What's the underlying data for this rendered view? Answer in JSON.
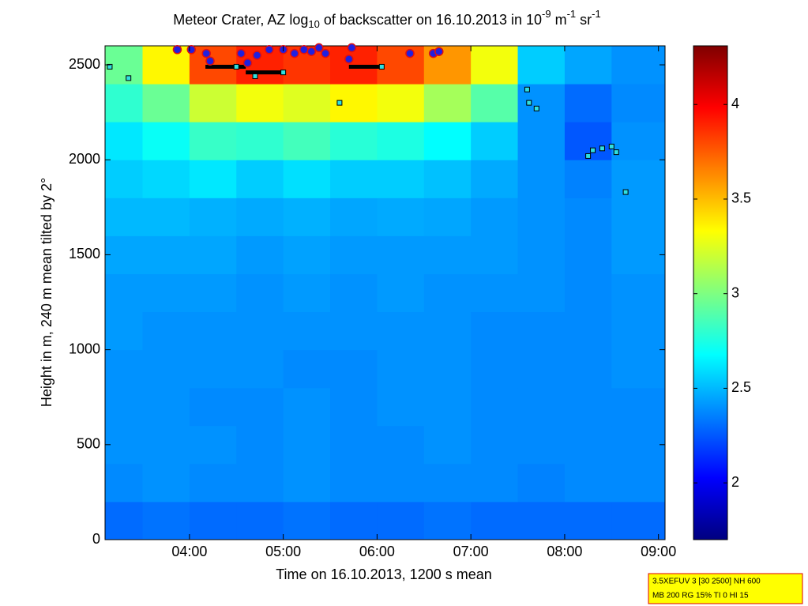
{
  "chart_data": {
    "type": "heatmap",
    "title_parts": [
      {
        "text": "Meteor Crater, AZ log"
      },
      {
        "text": "10",
        "script": "sub"
      },
      {
        "text": " of backscatter on 16.10.2013 in 10"
      },
      {
        "text": "-9",
        "script": "super"
      },
      {
        "text": " m"
      },
      {
        "text": "-1",
        "script": "super"
      },
      {
        "text": " sr"
      },
      {
        "text": "-1",
        "script": "super"
      }
    ],
    "x_label": "Time on 16.10.2013, 1200 s mean",
    "y_label": "Height in m, 240 m mean tilted by 2°",
    "xlim": [
      3.1,
      9.07
    ],
    "xticks": [
      {
        "value": 4,
        "label": "04:00"
      },
      {
        "value": 5,
        "label": "05:00"
      },
      {
        "value": 6,
        "label": "06:00"
      },
      {
        "value": 7,
        "label": "07:00"
      },
      {
        "value": 8,
        "label": "08:00"
      },
      {
        "value": 9,
        "label": "09:00"
      }
    ],
    "ylim": [
      0,
      2600
    ],
    "yticks": [
      0,
      500,
      1000,
      1500,
      2000,
      2500
    ],
    "clim": [
      1.7,
      4.31
    ],
    "cticks": [
      2,
      2.5,
      3,
      3.5,
      4
    ],
    "colormap": "jet",
    "x_edges": [
      3.1,
      3.5,
      4.0,
      4.5,
      5.0,
      5.5,
      6.0,
      6.5,
      7.0,
      7.5,
      8.0,
      8.5,
      9.07
    ],
    "y_edges": [
      0,
      200,
      400,
      600,
      800,
      1000,
      1200,
      1400,
      1600,
      1800,
      2000,
      2200,
      2400,
      2600
    ],
    "z": [
      [
        2.3,
        2.32,
        2.3,
        2.3,
        2.32,
        2.3,
        2.3,
        2.32,
        2.3,
        2.3,
        2.3,
        2.3
      ],
      [
        2.38,
        2.4,
        2.38,
        2.38,
        2.4,
        2.38,
        2.38,
        2.38,
        2.38,
        2.36,
        2.38,
        2.38
      ],
      [
        2.4,
        2.4,
        2.4,
        2.38,
        2.4,
        2.38,
        2.38,
        2.4,
        2.38,
        2.38,
        2.38,
        2.38
      ],
      [
        2.4,
        2.4,
        2.38,
        2.38,
        2.4,
        2.38,
        2.4,
        2.4,
        2.38,
        2.38,
        2.38,
        2.38
      ],
      [
        2.4,
        2.4,
        2.4,
        2.4,
        2.38,
        2.38,
        2.4,
        2.4,
        2.38,
        2.38,
        2.38,
        2.4
      ],
      [
        2.42,
        2.4,
        2.4,
        2.4,
        2.4,
        2.4,
        2.4,
        2.4,
        2.38,
        2.38,
        2.38,
        2.4
      ],
      [
        2.42,
        2.42,
        2.42,
        2.4,
        2.42,
        2.4,
        2.42,
        2.4,
        2.4,
        2.4,
        2.38,
        2.4
      ],
      [
        2.45,
        2.45,
        2.45,
        2.42,
        2.44,
        2.42,
        2.42,
        2.42,
        2.42,
        2.4,
        2.38,
        2.42
      ],
      [
        2.5,
        2.5,
        2.48,
        2.46,
        2.48,
        2.45,
        2.46,
        2.45,
        2.42,
        2.4,
        2.38,
        2.42
      ],
      [
        2.55,
        2.58,
        2.62,
        2.55,
        2.6,
        2.55,
        2.55,
        2.52,
        2.46,
        2.4,
        2.36,
        2.42
      ],
      [
        2.62,
        2.7,
        2.82,
        2.8,
        2.85,
        2.78,
        2.75,
        2.68,
        2.55,
        2.4,
        2.25,
        2.4
      ],
      [
        2.8,
        2.95,
        3.2,
        3.3,
        3.25,
        3.35,
        3.3,
        3.1,
        2.9,
        2.4,
        2.3,
        2.38
      ],
      [
        2.95,
        3.35,
        3.8,
        3.9,
        3.85,
        3.9,
        3.8,
        3.6,
        3.3,
        2.55,
        2.45,
        2.4
      ]
    ],
    "circles": {
      "color": "#2020e0",
      "edge": "#e01010",
      "x": [
        3.87,
        4.02,
        4.18,
        4.22,
        4.55,
        4.62,
        4.72,
        4.85,
        5.0,
        5.12,
        5.22,
        5.3,
        5.38,
        5.45,
        5.7,
        5.73,
        6.35,
        6.6,
        6.66
      ],
      "y": [
        2580,
        2580,
        2560,
        2520,
        2560,
        2510,
        2550,
        2580,
        2580,
        2560,
        2580,
        2570,
        2590,
        2560,
        2530,
        2590,
        2560,
        2560,
        2570
      ]
    },
    "squares": {
      "color": "#30e0e0",
      "edge": "#000000",
      "x": [
        3.15,
        3.35,
        4.5,
        4.7,
        5.0,
        5.6,
        6.05,
        7.6,
        7.62,
        7.7,
        8.25,
        8.3,
        8.4,
        8.5,
        8.55,
        8.65
      ],
      "y": [
        2490,
        2430,
        2490,
        2440,
        2460,
        2300,
        2490,
        2370,
        2300,
        2270,
        2020,
        2050,
        2060,
        2070,
        2040,
        1830
      ]
    },
    "segments": {
      "color": "#000000",
      "x0": [
        4.17,
        4.6,
        5.7
      ],
      "x1": [
        4.6,
        5.0,
        6.05
      ],
      "y": [
        2490,
        2460,
        2490
      ]
    },
    "info_lines": [
      "3.5XEFUV 3 [30 2500] NH 600",
      "MB 200 RG 15% TI 0 HI 15"
    ]
  }
}
